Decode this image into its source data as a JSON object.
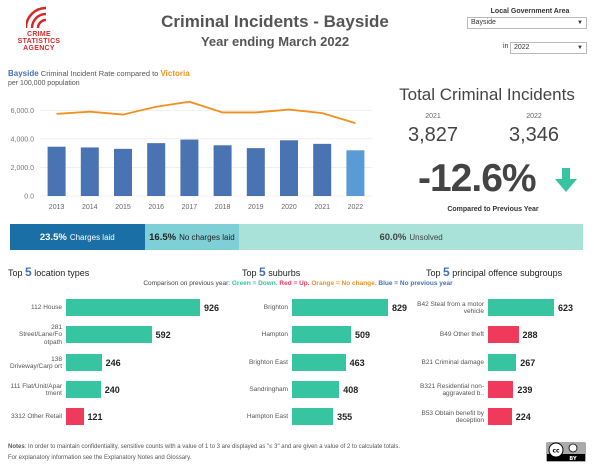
{
  "logo": {
    "line1": "CRIME",
    "line2": "STATISTICS",
    "line3": "AGENCY"
  },
  "header": {
    "title": "Criminal Incidents - Bayside",
    "subtitle": "Year ending March 2022"
  },
  "filters": {
    "lga_label": "Local Government Area",
    "lga_value": "Bayside",
    "in_label": "in",
    "year_value": "2022"
  },
  "rate_chart": {
    "area": "Bayside",
    "text1": "Criminal Incident Rate",
    "text2": "compared to",
    "comparison": "Victoria",
    "sub": "per 100,000 population"
  },
  "chart_data": {
    "type": "bar",
    "categories": [
      "2013",
      "2014",
      "2015",
      "2016",
      "2017",
      "2018",
      "2019",
      "2020",
      "2021",
      "2022"
    ],
    "series": [
      {
        "name": "Bayside",
        "type": "bar",
        "values": [
          3450,
          3400,
          3300,
          3700,
          3950,
          3550,
          3350,
          3900,
          3650,
          3200
        ]
      },
      {
        "name": "Victoria",
        "type": "line",
        "values": [
          5750,
          5900,
          5700,
          6250,
          6600,
          5850,
          5850,
          6050,
          5800,
          5100
        ]
      }
    ],
    "yticks": [
      "0.0",
      "2,000.0",
      "4,000.0",
      "6,000.0"
    ],
    "ylim": [
      0,
      7000
    ],
    "colors": {
      "bar": "#4a73b3",
      "bar_last": "#5b9bd5",
      "line": "#f0901e"
    }
  },
  "totals": {
    "title": "Total Criminal Incidents",
    "prev_year": "2021",
    "prev_value": "3,827",
    "curr_year": "2022",
    "curr_value": "3,346",
    "change": "-12.6%",
    "change_label": "Compared to Previous Year",
    "arrow_color": "#37c4a0"
  },
  "outcomes": [
    {
      "pct": "23.5%",
      "label": "Charges laid",
      "share": 23.5,
      "color": "#1a6fa6",
      "text": "#fff"
    },
    {
      "pct": "16.5%",
      "label": "No charges laid",
      "share": 16.5,
      "color": "#7ecfd6",
      "text": "#222"
    },
    {
      "pct": "60.0%",
      "label": "Unsolved",
      "share": 60.0,
      "color": "#a9e2d8",
      "text": "#444"
    }
  ],
  "sections": {
    "locations": {
      "pre": "Top",
      "num": "5",
      "post": "location types"
    },
    "suburbs": {
      "pre": "Top",
      "num": "5",
      "post": "suburbs"
    },
    "offences": {
      "pre": "Top",
      "num": "5",
      "post": "principal offence subgroups"
    }
  },
  "legend": {
    "lead": "Comparison on previous year:",
    "green": "Green = Down.",
    "red": "Red = Up.",
    "orange": "Orange = No change.",
    "blue": "Blue = No previous year"
  },
  "locations": [
    {
      "label": "112 House",
      "value": 926,
      "color": "#37c4a0"
    },
    {
      "label": "281 Street/Lane/Fo otpath",
      "value": 592,
      "color": "#37c4a0"
    },
    {
      "label": "138 Driveway/Carp ort",
      "value": 246,
      "color": "#37c4a0"
    },
    {
      "label": "111 Flat/Unit/Apar tment",
      "value": 240,
      "color": "#37c4a0"
    },
    {
      "label": "3312 Other Retail",
      "value": 121,
      "color": "#f03a5c"
    }
  ],
  "suburbs": [
    {
      "label": "Brighton",
      "value": 829,
      "color": "#37c4a0"
    },
    {
      "label": "Hampton",
      "value": 509,
      "color": "#37c4a0"
    },
    {
      "label": "Brighton East",
      "value": 463,
      "color": "#37c4a0"
    },
    {
      "label": "Sandringham",
      "value": 408,
      "color": "#37c4a0"
    },
    {
      "label": "Hampton East",
      "value": 355,
      "color": "#37c4a0"
    }
  ],
  "offences": [
    {
      "label": "B42 Steal from a motor vehicle",
      "value": 623,
      "color": "#37c4a0"
    },
    {
      "label": "B49 Other theft",
      "value": 288,
      "color": "#f03a5c"
    },
    {
      "label": "B21 Criminal damage",
      "value": 267,
      "color": "#37c4a0"
    },
    {
      "label": "B321 Residential non-aggravated b..",
      "value": 239,
      "color": "#f03a5c"
    },
    {
      "label": "B53 Obtain benefit by deception",
      "value": 224,
      "color": "#f03a5c"
    }
  ],
  "notes": {
    "label": "Notes",
    "text": ": In order to maintain confidentiality, sensitive counts with a value of 1 to 3 are displayed as \"≤ 3\" and are given a value of 2 to calculate totals.",
    "text2": "For explanatory information see the Explanatory Notes and Glossary."
  },
  "license": {
    "top": "cc",
    "bottom": "BY"
  }
}
